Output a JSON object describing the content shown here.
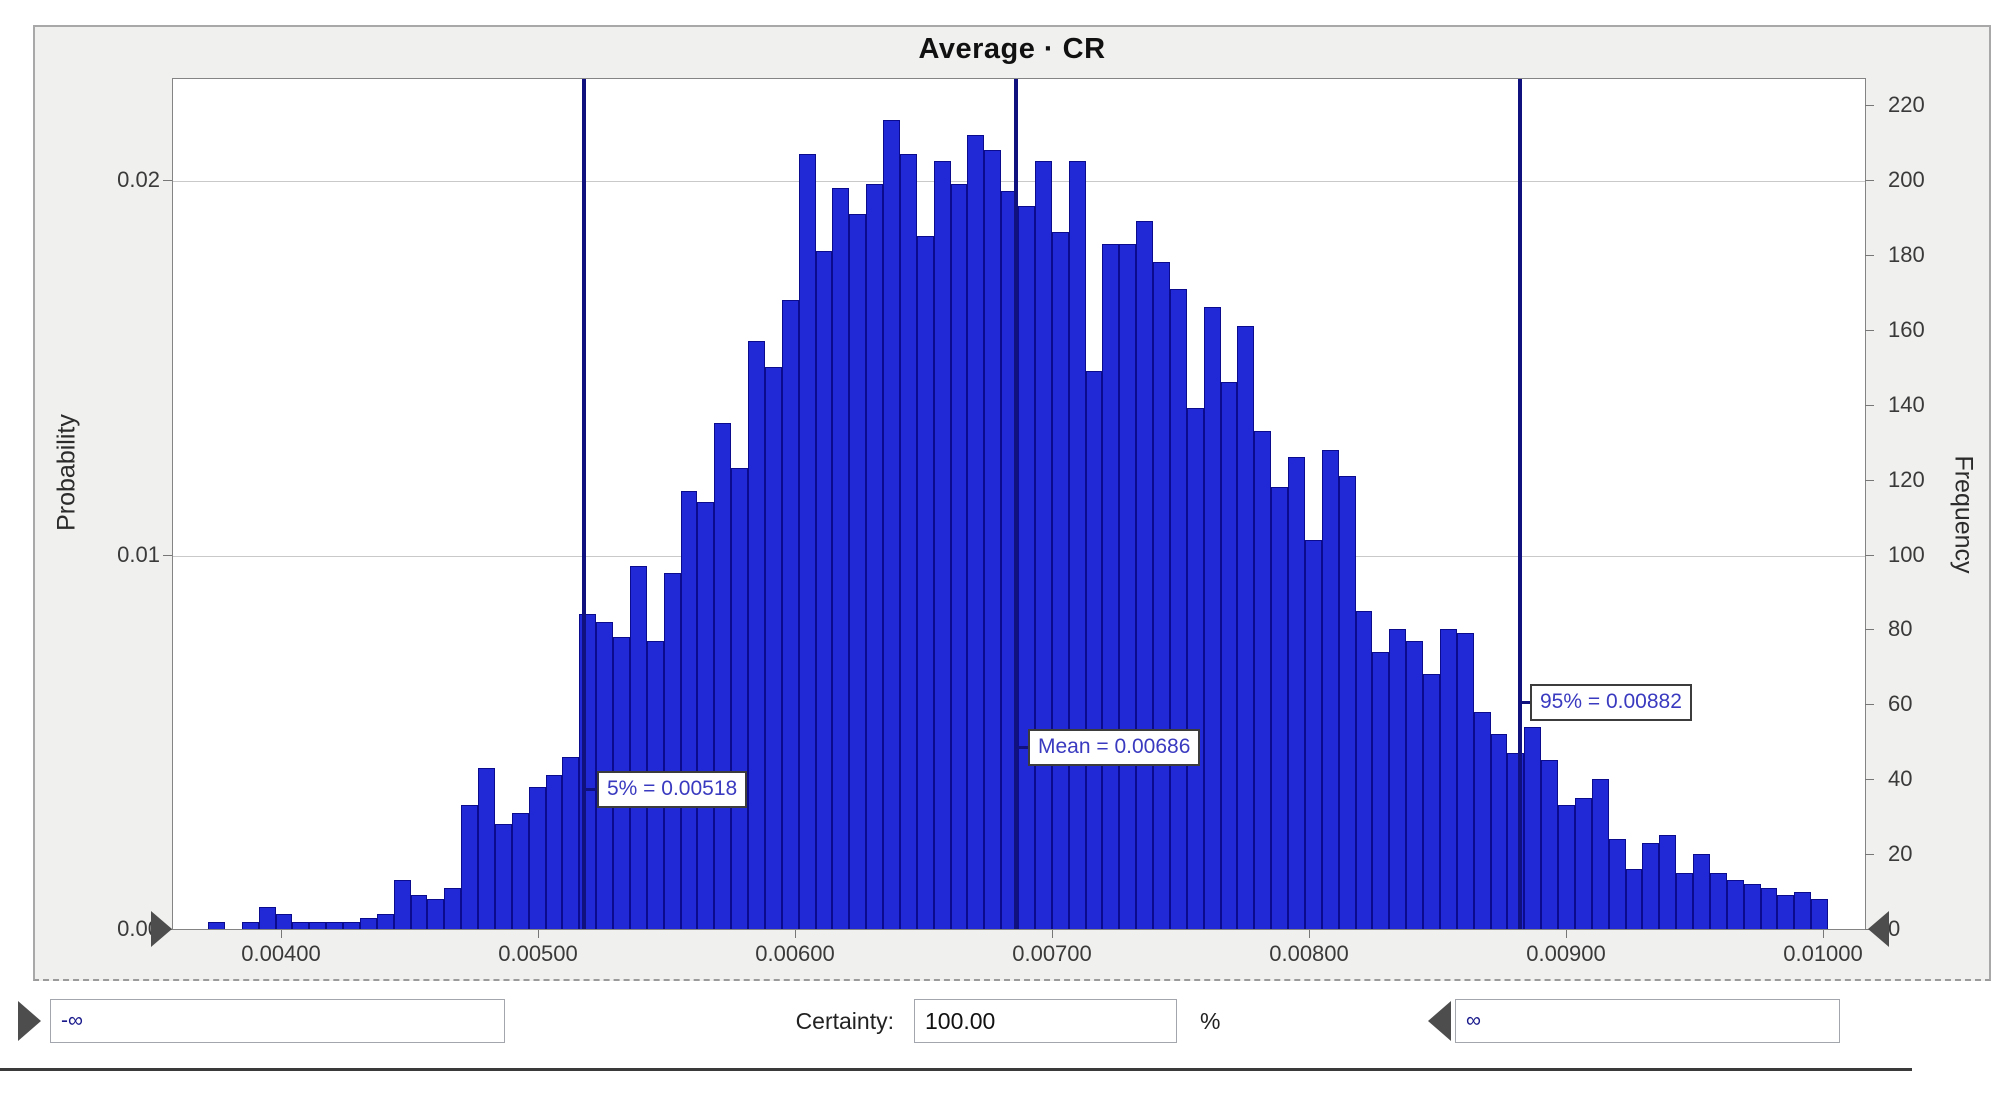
{
  "title": "Average · CR",
  "axes": {
    "y_left_label": "Probability",
    "y_right_label": "Frequency",
    "y_left_ticks": [
      "0.02",
      "0.01",
      "0.00"
    ],
    "y_right_ticks": [
      220,
      200,
      180,
      160,
      140,
      120,
      100,
      80,
      60,
      40,
      20,
      0
    ],
    "x_ticks": [
      "0.00400",
      "0.00500",
      "0.00600",
      "0.00700",
      "0.00800",
      "0.00900",
      "0.01000"
    ]
  },
  "annotations": {
    "p5_label": "5% = 0.00518",
    "mean_label": "Mean = 0.00686",
    "p95_label": "95% = 0.00882"
  },
  "controls": {
    "range_min_value": "-∞",
    "range_max_value": "∞",
    "certainty_label": "Certainty:",
    "certainty_value": "100.00",
    "percent_label": "%"
  },
  "colors": {
    "bar_fill": "#2128d6",
    "bar_edge": "#0b0b8e",
    "marker_line": "#10107e",
    "annotation_text": "#3a3ac0",
    "grid": "#c9c9c9"
  },
  "chart_data": {
    "type": "bar",
    "subtype": "histogram",
    "title": "Average · CR",
    "ylabel_left": "Probability",
    "ylabel_right": "Frequency",
    "x_axis_tick_values": [
      0.004,
      0.005,
      0.006,
      0.007,
      0.008,
      0.009,
      0.01
    ],
    "x_range_displayed": [
      0.003576,
      0.010164
    ],
    "ylim_frequency": [
      0,
      228
    ],
    "ylim_probability": [
      0,
      0.0228
    ],
    "grid": "horizontal only at 0.01 and 0.02 probability",
    "legend_position": "none",
    "bin_start_value": 0.0037,
    "bin_width_value": 6.57e-05,
    "note": "probability = frequency / 10000",
    "frequencies": [
      2,
      0,
      2,
      6,
      4,
      2,
      2,
      2,
      2,
      3,
      4,
      13,
      9,
      8,
      11,
      33,
      43,
      28,
      31,
      38,
      41,
      46,
      84,
      82,
      78,
      97,
      77,
      95,
      117,
      114,
      135,
      123,
      157,
      150,
      168,
      207,
      181,
      198,
      191,
      199,
      216,
      207,
      185,
      205,
      199,
      212,
      208,
      197,
      193,
      205,
      186,
      205,
      149,
      183,
      183,
      189,
      178,
      171,
      139,
      166,
      146,
      161,
      133,
      118,
      126,
      104,
      128,
      121,
      85,
      74,
      80,
      77,
      68,
      80,
      79,
      58,
      52,
      47,
      54,
      45,
      33,
      35,
      40,
      24,
      16,
      23,
      25,
      15,
      20,
      15,
      13,
      12,
      11,
      9,
      10,
      8
    ],
    "markers": {
      "p5": 0.00518,
      "mean": 0.00686,
      "p95": 0.00882
    },
    "certainty_pct": 100.0
  }
}
